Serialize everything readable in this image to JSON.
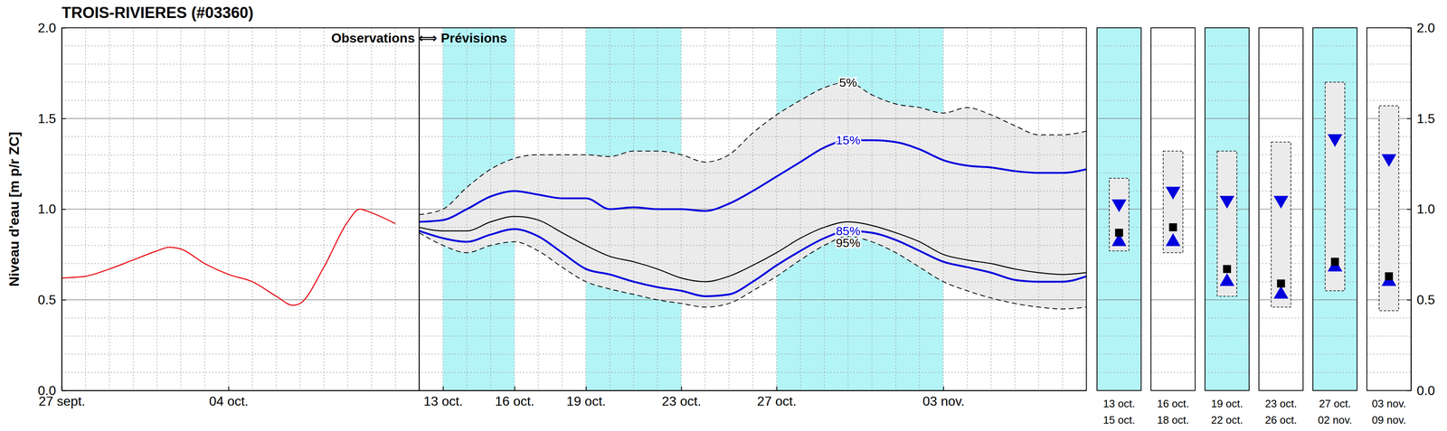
{
  "chart_data": {
    "type": "line",
    "title": "TROIS-RIVIERES (#03360)",
    "y_label": "Niveau d'eau [m p/r ZC]",
    "annotation": "Observations ⟺ Prévisions",
    "forecast_start": 15,
    "xlim": [
      0,
      43
    ],
    "xticks": [
      {
        "value": 0,
        "label": "27 sept."
      },
      {
        "value": 7,
        "label": "04 oct."
      },
      {
        "value": 16,
        "label": "13 oct."
      },
      {
        "value": 19,
        "label": "16 oct."
      },
      {
        "value": 22,
        "label": "19 oct."
      },
      {
        "value": 26,
        "label": "23 oct."
      },
      {
        "value": 30,
        "label": "27 oct."
      },
      {
        "value": 37,
        "label": "03 nov."
      }
    ],
    "ylim": [
      0,
      2
    ],
    "yticks": [
      {
        "value": 0,
        "label": "0.0"
      },
      {
        "value": 0.5,
        "label": "0.5"
      },
      {
        "value": 1,
        "label": "1.0"
      },
      {
        "value": 1.5,
        "label": "1.5"
      },
      {
        "value": 2,
        "label": "2.0"
      }
    ],
    "grid": true,
    "series": [
      {
        "color": "#e8000b",
        "line_style": "solid",
        "x": [
          0,
          1,
          2,
          3,
          4,
          4.5,
          5,
          6,
          7,
          8,
          9,
          9.7,
          10,
          11,
          12,
          12.5,
          13,
          14
        ],
        "values": [
          0.62,
          0.63,
          0.67,
          0.72,
          0.77,
          0.79,
          0.78,
          0.7,
          0.64,
          0.6,
          0.52,
          0.47,
          0.48,
          0.68,
          0.93,
          1.0,
          0.98,
          0.92
        ]
      },
      {
        "name": "5%",
        "color": "#000000",
        "line_style": "dashed",
        "x": [
          15,
          16,
          17,
          18,
          19,
          20,
          21,
          22,
          23,
          24,
          25,
          26,
          27,
          28,
          29,
          30,
          31,
          32,
          33,
          34,
          35,
          36,
          37,
          38,
          39,
          40,
          41,
          42,
          43
        ],
        "values": [
          0.97,
          1.0,
          1.12,
          1.22,
          1.28,
          1.3,
          1.3,
          1.3,
          1.29,
          1.32,
          1.32,
          1.3,
          1.26,
          1.3,
          1.42,
          1.52,
          1.6,
          1.67,
          1.7,
          1.63,
          1.58,
          1.56,
          1.53,
          1.56,
          1.52,
          1.46,
          1.41,
          1.41,
          1.43
        ]
      },
      {
        "name": "15%",
        "color": "#0000dd",
        "line_style": "solid",
        "x": [
          15,
          16,
          17,
          18,
          19,
          20,
          21,
          22,
          23,
          24,
          25,
          26,
          27,
          28,
          29,
          30,
          31,
          32,
          33,
          34,
          35,
          36,
          37,
          38,
          39,
          40,
          41,
          42,
          43
        ],
        "values": [
          0.93,
          0.94,
          1.0,
          1.07,
          1.1,
          1.08,
          1.06,
          1.06,
          1.0,
          1.01,
          1.0,
          1.0,
          0.99,
          1.03,
          1.1,
          1.18,
          1.26,
          1.34,
          1.38,
          1.38,
          1.37,
          1.33,
          1.27,
          1.24,
          1.23,
          1.21,
          1.2,
          1.2,
          1.22
        ]
      },
      {
        "color": "#000000",
        "line_style": "solid",
        "x": [
          15,
          16,
          17,
          18,
          19,
          20,
          21,
          22,
          23,
          24,
          25,
          26,
          27,
          28,
          29,
          30,
          31,
          32,
          33,
          34,
          35,
          36,
          37,
          38,
          39,
          40,
          41,
          42,
          43
        ],
        "values": [
          0.9,
          0.88,
          0.88,
          0.93,
          0.96,
          0.94,
          0.87,
          0.8,
          0.74,
          0.71,
          0.67,
          0.62,
          0.6,
          0.63,
          0.69,
          0.76,
          0.84,
          0.9,
          0.93,
          0.91,
          0.87,
          0.82,
          0.75,
          0.72,
          0.7,
          0.67,
          0.65,
          0.64,
          0.65
        ]
      },
      {
        "name": "85%",
        "color": "#0000dd",
        "line_style": "solid",
        "x": [
          15,
          16,
          17,
          18,
          19,
          20,
          21,
          22,
          23,
          24,
          25,
          26,
          27,
          28,
          29,
          30,
          31,
          32,
          33,
          34,
          35,
          36,
          37,
          38,
          39,
          40,
          41,
          42,
          43
        ],
        "values": [
          0.88,
          0.84,
          0.82,
          0.86,
          0.89,
          0.85,
          0.76,
          0.67,
          0.64,
          0.6,
          0.57,
          0.55,
          0.52,
          0.53,
          0.6,
          0.69,
          0.77,
          0.84,
          0.88,
          0.87,
          0.83,
          0.77,
          0.71,
          0.68,
          0.65,
          0.61,
          0.6,
          0.6,
          0.63
        ]
      },
      {
        "name": "95%",
        "color": "#000000",
        "line_style": "dashed",
        "x": [
          15,
          16,
          17,
          18,
          19,
          20,
          21,
          22,
          23,
          24,
          25,
          26,
          27,
          28,
          29,
          30,
          31,
          32,
          33,
          34,
          35,
          36,
          37,
          38,
          39,
          40,
          41,
          42,
          43
        ],
        "values": [
          0.87,
          0.8,
          0.76,
          0.8,
          0.82,
          0.77,
          0.68,
          0.6,
          0.56,
          0.53,
          0.5,
          0.48,
          0.46,
          0.48,
          0.55,
          0.63,
          0.72,
          0.8,
          0.85,
          0.82,
          0.76,
          0.68,
          0.6,
          0.55,
          0.51,
          0.48,
          0.46,
          0.45,
          0.46
        ]
      }
    ],
    "periods": [
      {
        "start": "13 oct.",
        "end": "15 oct.",
        "xlim": [
          16,
          19
        ],
        "p5": 1.17,
        "p15": 1.03,
        "median": 0.87,
        "p85": 0.82,
        "p95": 0.77
      },
      {
        "start": "16 oct.",
        "end": "18 oct.",
        "xlim": [
          19,
          22
        ],
        "p5": 1.32,
        "p15": 1.1,
        "median": 0.9,
        "p85": 0.82,
        "p95": 0.76
      },
      {
        "start": "19 oct.",
        "end": "22 oct.",
        "xlim": [
          22,
          26
        ],
        "p5": 1.32,
        "p15": 1.05,
        "median": 0.67,
        "p85": 0.6,
        "p95": 0.52
      },
      {
        "start": "23 oct.",
        "end": "26 oct.",
        "xlim": [
          26,
          30
        ],
        "p5": 1.37,
        "p15": 1.05,
        "median": 0.59,
        "p85": 0.53,
        "p95": 0.46
      },
      {
        "start": "27 oct.",
        "end": "02 nov.",
        "xlim": [
          30,
          37
        ],
        "p5": 1.7,
        "p15": 1.39,
        "median": 0.71,
        "p85": 0.68,
        "p95": 0.55
      },
      {
        "start": "03 nov.",
        "end": "09 nov.",
        "xlim": [
          37,
          44
        ],
        "p5": 1.57,
        "p15": 1.28,
        "median": 0.63,
        "p85": 0.6,
        "p95": 0.44
      }
    ]
  }
}
